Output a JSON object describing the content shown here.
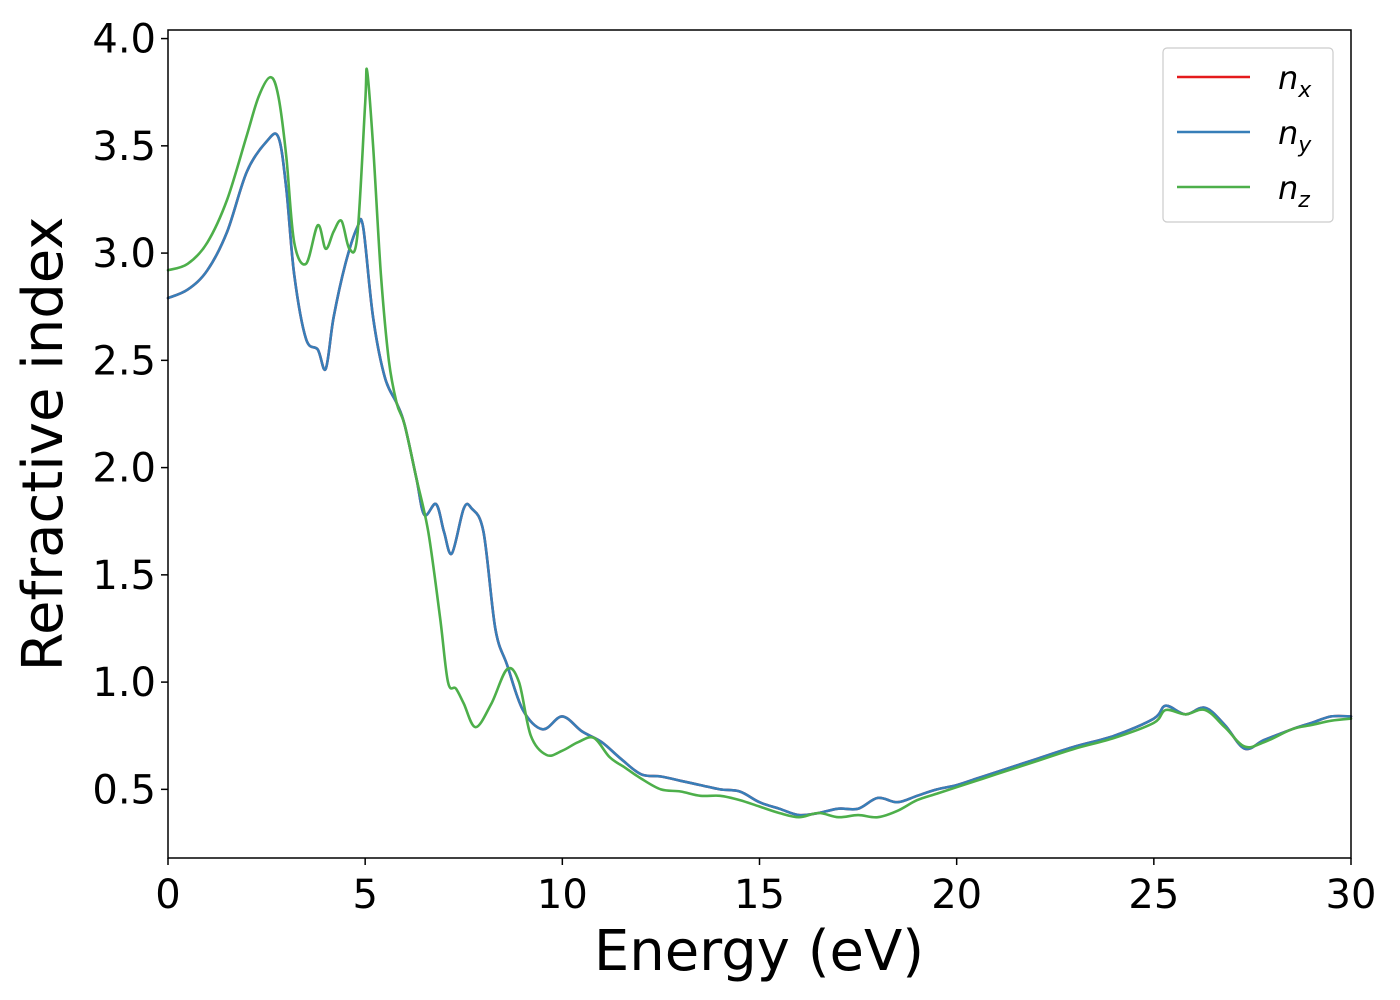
{
  "chart_data": {
    "type": "line",
    "title": "",
    "xlabel": "Energy (eV)",
    "ylabel": "Refractive index",
    "xlim": [
      0,
      30
    ],
    "ylim": [
      0.18,
      4.04
    ],
    "xticks": [
      0,
      5,
      10,
      15,
      20,
      25,
      30
    ],
    "xtick_labels": [
      "0",
      "5",
      "10",
      "15",
      "20",
      "25",
      "30"
    ],
    "yticks": [
      0.5,
      1.0,
      1.5,
      2.0,
      2.5,
      3.0,
      3.5,
      4.0
    ],
    "ytick_labels": [
      "0.5",
      "1.0",
      "1.5",
      "2.0",
      "2.5",
      "3.0",
      "3.5",
      "4.0"
    ],
    "grid": false,
    "legend_position": "top-right",
    "series": [
      {
        "name": "n_x",
        "label_main": "n",
        "label_sub": "x",
        "color": "#e41a1c",
        "x": [
          0,
          0.5,
          1,
          1.5,
          2,
          2.5,
          2.8,
          3,
          3.2,
          3.5,
          3.8,
          4,
          4.2,
          4.5,
          4.8,
          4.95,
          5.2,
          5.5,
          5.8,
          6,
          6.3,
          6.5,
          6.8,
          7,
          7.2,
          7.5,
          7.7,
          8,
          8.3,
          8.6,
          9,
          9.5,
          10,
          10.5,
          11,
          11.5,
          12,
          12.5,
          13,
          13.5,
          14,
          14.5,
          15,
          15.5,
          16,
          16.5,
          17,
          17.5,
          18,
          18.5,
          19,
          19.5,
          20,
          20.5,
          21,
          22,
          23,
          24,
          25,
          25.3,
          25.8,
          26.3,
          26.8,
          27.3,
          27.8,
          28.5,
          29,
          29.5,
          30
        ],
        "y": [
          2.79,
          2.83,
          2.92,
          3.1,
          3.38,
          3.52,
          3.54,
          3.3,
          2.9,
          2.6,
          2.55,
          2.46,
          2.7,
          2.95,
          3.12,
          3.12,
          2.7,
          2.42,
          2.3,
          2.2,
          1.95,
          1.78,
          1.83,
          1.7,
          1.6,
          1.81,
          1.81,
          1.7,
          1.25,
          1.08,
          0.87,
          0.78,
          0.84,
          0.77,
          0.72,
          0.64,
          0.57,
          0.56,
          0.54,
          0.52,
          0.5,
          0.49,
          0.44,
          0.41,
          0.38,
          0.39,
          0.41,
          0.41,
          0.46,
          0.44,
          0.47,
          0.5,
          0.52,
          0.55,
          0.58,
          0.64,
          0.7,
          0.75,
          0.83,
          0.89,
          0.85,
          0.88,
          0.8,
          0.69,
          0.73,
          0.78,
          0.81,
          0.84,
          0.84
        ]
      },
      {
        "name": "n_y",
        "label_main": "n",
        "label_sub": "y",
        "color": "#377eb8",
        "x": [
          0,
          0.5,
          1,
          1.5,
          2,
          2.5,
          2.8,
          3,
          3.2,
          3.5,
          3.8,
          4,
          4.2,
          4.5,
          4.8,
          4.95,
          5.2,
          5.5,
          5.8,
          6,
          6.3,
          6.5,
          6.8,
          7,
          7.2,
          7.5,
          7.7,
          8,
          8.3,
          8.6,
          9,
          9.5,
          10,
          10.5,
          11,
          11.5,
          12,
          12.5,
          13,
          13.5,
          14,
          14.5,
          15,
          15.5,
          16,
          16.5,
          17,
          17.5,
          18,
          18.5,
          19,
          19.5,
          20,
          20.5,
          21,
          22,
          23,
          24,
          25,
          25.3,
          25.8,
          26.3,
          26.8,
          27.3,
          27.8,
          28.5,
          29,
          29.5,
          30
        ],
        "y": [
          2.79,
          2.83,
          2.92,
          3.1,
          3.38,
          3.52,
          3.54,
          3.3,
          2.9,
          2.6,
          2.55,
          2.46,
          2.7,
          2.95,
          3.12,
          3.12,
          2.7,
          2.42,
          2.3,
          2.2,
          1.95,
          1.78,
          1.83,
          1.7,
          1.6,
          1.81,
          1.81,
          1.7,
          1.25,
          1.08,
          0.87,
          0.78,
          0.84,
          0.77,
          0.72,
          0.64,
          0.57,
          0.56,
          0.54,
          0.52,
          0.5,
          0.49,
          0.44,
          0.41,
          0.38,
          0.39,
          0.41,
          0.41,
          0.46,
          0.44,
          0.47,
          0.5,
          0.52,
          0.55,
          0.58,
          0.64,
          0.7,
          0.75,
          0.83,
          0.89,
          0.85,
          0.88,
          0.8,
          0.69,
          0.73,
          0.78,
          0.81,
          0.84,
          0.84
        ]
      },
      {
        "name": "n_z",
        "label_main": "n",
        "label_sub": "z",
        "color": "#4daf4a",
        "x": [
          0,
          0.5,
          1,
          1.5,
          2,
          2.3,
          2.6,
          2.8,
          3,
          3.2,
          3.5,
          3.8,
          4,
          4.2,
          4.4,
          4.6,
          4.8,
          5,
          5.05,
          5.2,
          5.4,
          5.6,
          5.8,
          6,
          6.3,
          6.6,
          6.9,
          7.1,
          7.3,
          7.5,
          7.8,
          8.2,
          8.6,
          8.9,
          9.2,
          9.6,
          10,
          10.4,
          10.8,
          11.2,
          11.6,
          12,
          12.5,
          13,
          13.5,
          14,
          14.5,
          15,
          15.5,
          16,
          16.5,
          17,
          17.5,
          18,
          18.5,
          19,
          19.5,
          20,
          20.5,
          21,
          22,
          23,
          24,
          25,
          25.3,
          25.8,
          26.3,
          26.8,
          27.3,
          27.8,
          28.5,
          29,
          29.5,
          30
        ],
        "y": [
          2.92,
          2.95,
          3.05,
          3.25,
          3.55,
          3.73,
          3.82,
          3.73,
          3.45,
          3.05,
          2.95,
          3.13,
          3.02,
          3.1,
          3.15,
          3.02,
          3.08,
          3.7,
          3.85,
          3.5,
          2.9,
          2.5,
          2.3,
          2.2,
          1.95,
          1.7,
          1.3,
          1.0,
          0.97,
          0.9,
          0.79,
          0.9,
          1.06,
          1.0,
          0.75,
          0.66,
          0.68,
          0.72,
          0.74,
          0.65,
          0.6,
          0.55,
          0.5,
          0.49,
          0.47,
          0.47,
          0.45,
          0.42,
          0.39,
          0.37,
          0.39,
          0.37,
          0.38,
          0.37,
          0.4,
          0.45,
          0.48,
          0.51,
          0.54,
          0.57,
          0.63,
          0.69,
          0.74,
          0.81,
          0.87,
          0.85,
          0.87,
          0.79,
          0.7,
          0.72,
          0.78,
          0.8,
          0.82,
          0.83
        ]
      }
    ]
  }
}
